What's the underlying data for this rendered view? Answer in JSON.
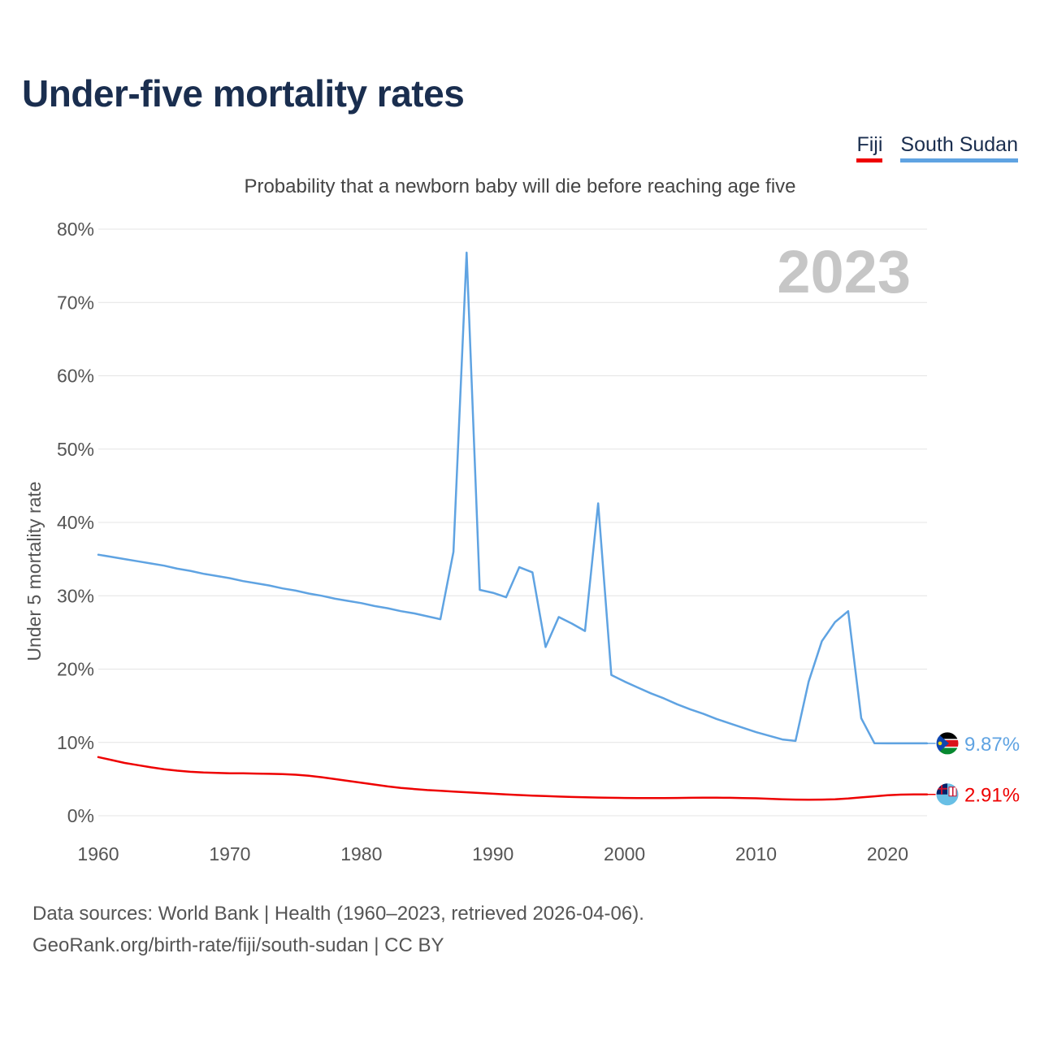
{
  "title": "Under-five mortality rates",
  "subtitle": "Probability that a newborn baby will die before reaching age five",
  "legend": [
    {
      "name": "Fiji",
      "color": "#ee0000"
    },
    {
      "name": "South Sudan",
      "color": "#5fa3e2"
    }
  ],
  "source": {
    "line1": "Data sources: World Bank | Health (1960–2023, retrieved 2026-04-06).",
    "line2": "GeoRank.org/birth-rate/fiji/south-sudan | CC BY"
  },
  "chart_data": {
    "type": "line",
    "title": "Under-five mortality rates",
    "subtitle": "Probability that a newborn baby will die before reaching age five",
    "xlabel": "",
    "ylabel": "Under 5 mortality rate",
    "year_label": "2023",
    "xlim": [
      1960,
      2023
    ],
    "ylim": [
      0,
      80
    ],
    "x_ticks": [
      1960,
      1970,
      1980,
      1990,
      2000,
      2010,
      2020
    ],
    "y_ticks": [
      0,
      10,
      20,
      30,
      40,
      50,
      60,
      70,
      80
    ],
    "y_tick_labels": [
      "0%",
      "10%",
      "20%",
      "30%",
      "40%",
      "50%",
      "60%",
      "70%",
      "80%"
    ],
    "grid": true,
    "legend_position": "top-right",
    "series": [
      {
        "name": "Fiji",
        "color": "#ee0000",
        "end_label": "2.91%",
        "flag": "fiji-flag-icon",
        "x": [
          1960,
          1961,
          1962,
          1963,
          1964,
          1965,
          1966,
          1967,
          1968,
          1969,
          1970,
          1971,
          1972,
          1973,
          1974,
          1975,
          1976,
          1977,
          1978,
          1979,
          1980,
          1981,
          1982,
          1983,
          1984,
          1985,
          1986,
          1987,
          1988,
          1989,
          1990,
          1991,
          1992,
          1993,
          1994,
          1995,
          1996,
          1997,
          1998,
          1999,
          2000,
          2001,
          2002,
          2003,
          2004,
          2005,
          2006,
          2007,
          2008,
          2009,
          2010,
          2011,
          2012,
          2013,
          2014,
          2015,
          2016,
          2017,
          2018,
          2019,
          2020,
          2021,
          2022,
          2023
        ],
        "values": [
          8.0,
          7.6,
          7.2,
          6.9,
          6.6,
          6.35,
          6.15,
          6.0,
          5.9,
          5.85,
          5.8,
          5.78,
          5.75,
          5.72,
          5.68,
          5.6,
          5.45,
          5.25,
          5.0,
          4.75,
          4.5,
          4.25,
          4.0,
          3.8,
          3.65,
          3.5,
          3.4,
          3.3,
          3.2,
          3.1,
          3.0,
          2.9,
          2.82,
          2.75,
          2.68,
          2.62,
          2.56,
          2.52,
          2.48,
          2.45,
          2.43,
          2.42,
          2.42,
          2.42,
          2.43,
          2.45,
          2.46,
          2.46,
          2.45,
          2.42,
          2.38,
          2.32,
          2.25,
          2.2,
          2.18,
          2.2,
          2.25,
          2.35,
          2.5,
          2.65,
          2.8,
          2.88,
          2.91,
          2.91
        ]
      },
      {
        "name": "South Sudan",
        "color": "#5fa3e2",
        "end_label": "9.87%",
        "flag": "south-sudan-flag-icon",
        "x": [
          1960,
          1961,
          1962,
          1963,
          1964,
          1965,
          1966,
          1967,
          1968,
          1969,
          1970,
          1971,
          1972,
          1973,
          1974,
          1975,
          1976,
          1977,
          1978,
          1979,
          1980,
          1981,
          1982,
          1983,
          1984,
          1985,
          1986,
          1987,
          1988,
          1989,
          1990,
          1991,
          1992,
          1993,
          1994,
          1995,
          1996,
          1997,
          1998,
          1999,
          2000,
          2001,
          2002,
          2003,
          2004,
          2005,
          2006,
          2007,
          2008,
          2009,
          2010,
          2011,
          2012,
          2013,
          2014,
          2015,
          2016,
          2017,
          2018,
          2019,
          2020,
          2021,
          2022,
          2023
        ],
        "values": [
          35.6,
          35.3,
          35.0,
          34.7,
          34.4,
          34.1,
          33.7,
          33.4,
          33.0,
          32.7,
          32.4,
          32.0,
          31.7,
          31.4,
          31.0,
          30.7,
          30.3,
          30.0,
          29.6,
          29.3,
          29.0,
          28.6,
          28.3,
          27.9,
          27.6,
          27.2,
          26.8,
          36.0,
          76.8,
          30.8,
          30.4,
          29.8,
          33.9,
          33.2,
          23.0,
          27.1,
          26.2,
          25.2,
          42.6,
          19.2,
          18.3,
          17.5,
          16.7,
          16.0,
          15.2,
          14.5,
          13.9,
          13.2,
          12.6,
          12.0,
          11.4,
          10.9,
          10.4,
          10.2,
          18.3,
          23.8,
          26.4,
          27.9,
          13.3,
          9.9,
          9.87,
          9.87,
          9.87,
          9.87
        ]
      }
    ]
  }
}
